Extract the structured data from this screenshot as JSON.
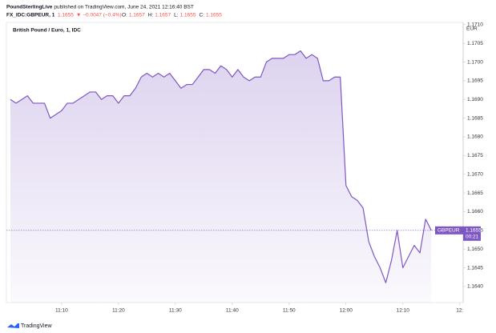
{
  "header": {
    "publisher": "PoundSterlingLive",
    "published": "published on TradingView.com, June 24, 2021 12:16:40 BST",
    "symbol": "FX_IDC:GBPEUR, 1",
    "price": "1.1655",
    "change": "▼ −0.0047 (−0.4%)",
    "ohlc": [
      {
        "label": "O:",
        "value": "1.1657"
      },
      {
        "label": "H:",
        "value": "1.1657"
      },
      {
        "label": "L:",
        "value": "1.1655"
      },
      {
        "label": "C:",
        "value": "1.1655"
      }
    ]
  },
  "chart_data": {
    "type": "area",
    "title": "British Pound / Euro, 1, IDC",
    "y_unit": "EUR",
    "x": [
      661,
      662,
      663,
      664,
      665,
      666,
      667,
      668,
      669,
      670,
      671,
      672,
      673,
      674,
      675,
      676,
      677,
      678,
      679,
      680,
      681,
      682,
      683,
      684,
      685,
      686,
      687,
      688,
      689,
      690,
      691,
      692,
      693,
      694,
      695,
      696,
      697,
      698,
      699,
      700,
      701,
      702,
      703,
      704,
      705,
      706,
      707,
      708,
      709,
      710,
      711,
      712,
      713,
      714,
      715,
      716,
      717,
      718,
      719,
      720,
      721,
      722,
      723,
      724,
      725,
      726,
      727,
      728,
      729,
      730,
      731,
      732,
      733,
      734,
      735
    ],
    "series": [
      {
        "name": "GBPEUR",
        "color": "#7e57c2",
        "values": [
          1.169,
          1.1689,
          1.169,
          1.1691,
          1.1689,
          1.1689,
          1.1689,
          1.1685,
          1.1686,
          1.1687,
          1.1689,
          1.1689,
          1.169,
          1.1691,
          1.1692,
          1.1692,
          1.169,
          1.1691,
          1.1691,
          1.1689,
          1.1691,
          1.1691,
          1.1693,
          1.1696,
          1.1697,
          1.1696,
          1.1697,
          1.1696,
          1.1697,
          1.1695,
          1.1693,
          1.1694,
          1.1694,
          1.1696,
          1.1698,
          1.1698,
          1.1697,
          1.1699,
          1.1698,
          1.1696,
          1.1698,
          1.1696,
          1.1695,
          1.1696,
          1.1696,
          1.17,
          1.1701,
          1.1701,
          1.1701,
          1.1702,
          1.1702,
          1.1703,
          1.1701,
          1.1702,
          1.1701,
          1.1695,
          1.1695,
          1.1696,
          1.1696,
          1.1667,
          1.1664,
          1.1663,
          1.1661,
          1.1652,
          1.1648,
          1.1645,
          1.1641,
          1.1647,
          1.1655,
          1.1645,
          1.1648,
          1.1651,
          1.1649,
          1.1658,
          1.1655
        ]
      }
    ],
    "last_price": 1.1655,
    "countdown": "00:21",
    "xlim": [
      660.3,
      740.6
    ],
    "xticks": [
      {
        "value": 670,
        "label": "11:10"
      },
      {
        "value": 680,
        "label": "11:20"
      },
      {
        "value": 690,
        "label": "11:30"
      },
      {
        "value": 700,
        "label": "11:40"
      },
      {
        "value": 710,
        "label": "11:50"
      },
      {
        "value": 720,
        "label": "12:00"
      },
      {
        "value": 730,
        "label": "12:10"
      },
      {
        "value": 740,
        "label": "12:"
      }
    ],
    "ylim": [
      1.16357,
      1.17106
    ],
    "yticks": [
      {
        "value": 1.164,
        "label": "1.1640"
      },
      {
        "value": 1.1645,
        "label": "1.1645"
      },
      {
        "value": 1.165,
        "label": "1.1650"
      },
      {
        "value": 1.1655,
        "label": "1.1655"
      },
      {
        "value": 1.166,
        "label": "1.1660"
      },
      {
        "value": 1.1665,
        "label": "1.1665"
      },
      {
        "value": 1.167,
        "label": "1.1670"
      },
      {
        "value": 1.1675,
        "label": "1.1675"
      },
      {
        "value": 1.168,
        "label": "1.1680"
      },
      {
        "value": 1.1685,
        "label": "1.1685"
      },
      {
        "value": 1.169,
        "label": "1.1690"
      },
      {
        "value": 1.1695,
        "label": "1.1695"
      },
      {
        "value": 1.17,
        "label": "1.1700"
      },
      {
        "value": 1.1705,
        "label": "1.1705"
      },
      {
        "value": 1.171,
        "label": "1.1710"
      }
    ],
    "grid": false
  },
  "footer": {
    "brand": "TradingView"
  }
}
